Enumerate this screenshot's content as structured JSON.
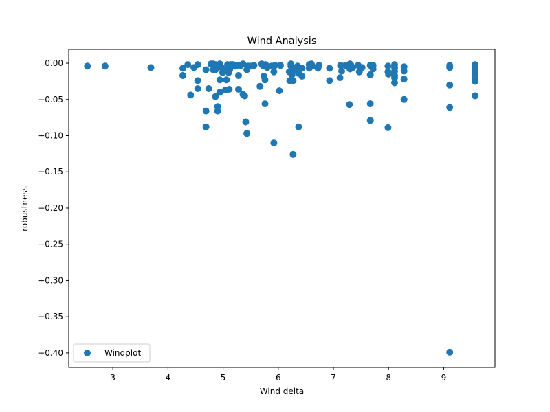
{
  "chart_data": {
    "type": "scatter",
    "title": "Wind Analysis",
    "xlabel": "Wind delta",
    "ylabel": "robustness",
    "xlim": [
      2.2,
      9.93
    ],
    "ylim": [
      -0.42,
      0.019
    ],
    "xticks": [
      3,
      4,
      5,
      6,
      7,
      8,
      9
    ],
    "yticks": [
      0.0,
      -0.05,
      -0.1,
      -0.15,
      -0.2,
      -0.25,
      -0.3,
      -0.35,
      -0.4
    ],
    "grid": false,
    "legend": "lower-left",
    "marker_color": "#1f77b4",
    "series": [
      {
        "name": "Windplot",
        "points": [
          [
            2.54,
            -0.004
          ],
          [
            2.86,
            -0.004
          ],
          [
            3.69,
            -0.006
          ],
          [
            4.27,
            -0.007
          ],
          [
            4.27,
            -0.017
          ],
          [
            4.36,
            -0.002
          ],
          [
            4.41,
            -0.044
          ],
          [
            4.47,
            -0.006
          ],
          [
            4.54,
            -0.002
          ],
          [
            4.54,
            -0.024
          ],
          [
            4.54,
            -0.035
          ],
          [
            4.69,
            -0.009
          ],
          [
            4.69,
            -0.066
          ],
          [
            4.69,
            -0.088
          ],
          [
            4.74,
            -0.035
          ],
          [
            4.78,
            -0.001
          ],
          [
            4.82,
            -0.001
          ],
          [
            4.82,
            -0.009
          ],
          [
            4.86,
            -0.002
          ],
          [
            4.86,
            -0.009
          ],
          [
            4.86,
            -0.046
          ],
          [
            4.9,
            -0.005
          ],
          [
            4.9,
            -0.06
          ],
          [
            4.9,
            -0.066
          ],
          [
            4.94,
            -0.001
          ],
          [
            4.94,
            -0.023
          ],
          [
            4.94,
            -0.04
          ],
          [
            4.97,
            -0.006
          ],
          [
            4.99,
            -0.013
          ],
          [
            5.01,
            -0.011
          ],
          [
            5.04,
            -0.037
          ],
          [
            5.06,
            -0.023
          ],
          [
            5.08,
            -0.002
          ],
          [
            5.08,
            -0.008
          ],
          [
            5.1,
            -0.013
          ],
          [
            5.11,
            -0.036
          ],
          [
            5.12,
            -0.004
          ],
          [
            5.12,
            -0.009
          ],
          [
            5.14,
            -0.002
          ],
          [
            5.18,
            -0.002
          ],
          [
            5.21,
            -0.004
          ],
          [
            5.25,
            -0.003
          ],
          [
            5.28,
            -0.017
          ],
          [
            5.28,
            -0.036
          ],
          [
            5.32,
            -0.003
          ],
          [
            5.36,
            -0.001
          ],
          [
            5.36,
            -0.043
          ],
          [
            5.39,
            -0.045
          ],
          [
            5.41,
            -0.081
          ],
          [
            5.43,
            -0.097
          ],
          [
            5.43,
            -0.009
          ],
          [
            5.45,
            -0.004
          ],
          [
            5.49,
            -0.004
          ],
          [
            5.56,
            -0.003
          ],
          [
            5.67,
            -0.032
          ],
          [
            5.7,
            -0.001
          ],
          [
            5.72,
            -0.003
          ],
          [
            5.74,
            -0.018
          ],
          [
            5.76,
            -0.023
          ],
          [
            5.76,
            -0.056
          ],
          [
            5.77,
            -0.002
          ],
          [
            5.8,
            -0.006
          ],
          [
            5.88,
            -0.004
          ],
          [
            5.92,
            -0.11
          ],
          [
            5.92,
            -0.012
          ],
          [
            5.94,
            -0.003
          ],
          [
            6.02,
            -0.038
          ],
          [
            6.04,
            -0.003
          ],
          [
            6.2,
            -0.012
          ],
          [
            6.21,
            -0.024
          ],
          [
            6.23,
            -0.001
          ],
          [
            6.23,
            -0.004
          ],
          [
            6.25,
            -0.009
          ],
          [
            6.25,
            -0.016
          ],
          [
            6.27,
            -0.126
          ],
          [
            6.27,
            -0.024
          ],
          [
            6.31,
            -0.009
          ],
          [
            6.35,
            -0.004
          ],
          [
            6.37,
            -0.088
          ],
          [
            6.37,
            -0.014
          ],
          [
            6.4,
            -0.007
          ],
          [
            6.43,
            -0.018
          ],
          [
            6.43,
            -0.007
          ],
          [
            6.56,
            -0.002
          ],
          [
            6.56,
            -0.007
          ],
          [
            6.6,
            -0.001
          ],
          [
            6.62,
            -0.004
          ],
          [
            6.72,
            -0.007
          ],
          [
            6.74,
            -0.003
          ],
          [
            6.93,
            -0.024
          ],
          [
            6.93,
            -0.007
          ],
          [
            7.12,
            -0.02
          ],
          [
            7.13,
            -0.003
          ],
          [
            7.15,
            -0.011
          ],
          [
            7.22,
            -0.003
          ],
          [
            7.29,
            -0.057
          ],
          [
            7.3,
            -0.001
          ],
          [
            7.3,
            -0.008
          ],
          [
            7.32,
            -0.003
          ],
          [
            7.35,
            -0.006
          ],
          [
            7.45,
            -0.003
          ],
          [
            7.47,
            -0.012
          ],
          [
            7.52,
            -0.006
          ],
          [
            7.67,
            -0.003
          ],
          [
            7.67,
            -0.016
          ],
          [
            7.67,
            -0.056
          ],
          [
            7.67,
            -0.079
          ],
          [
            7.72,
            -0.003
          ],
          [
            7.72,
            -0.008
          ],
          [
            7.99,
            -0.089
          ],
          [
            7.99,
            -0.004
          ],
          [
            7.99,
            -0.012
          ],
          [
            8.0,
            -0.015
          ],
          [
            8.11,
            -0.002
          ],
          [
            8.11,
            -0.006
          ],
          [
            8.11,
            -0.011
          ],
          [
            8.11,
            -0.017
          ],
          [
            8.11,
            -0.02
          ],
          [
            8.11,
            -0.027
          ],
          [
            8.28,
            -0.005
          ],
          [
            8.28,
            -0.011
          ],
          [
            8.28,
            -0.022
          ],
          [
            8.28,
            -0.05
          ],
          [
            9.11,
            -0.399
          ],
          [
            9.11,
            -0.061
          ],
          [
            9.11,
            -0.03
          ],
          [
            9.11,
            -0.006
          ],
          [
            9.11,
            -0.003
          ],
          [
            9.57,
            -0.002
          ],
          [
            9.57,
            -0.005
          ],
          [
            9.57,
            -0.009
          ],
          [
            9.57,
            -0.013
          ],
          [
            9.57,
            -0.016
          ],
          [
            9.57,
            -0.022
          ],
          [
            9.57,
            -0.025
          ],
          [
            9.57,
            -0.045
          ]
        ]
      }
    ]
  }
}
